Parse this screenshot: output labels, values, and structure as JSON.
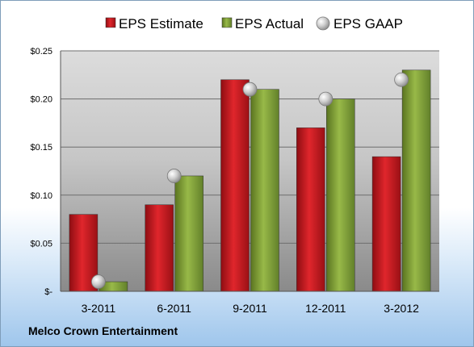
{
  "chart_data": {
    "type": "bar",
    "title": "",
    "xlabel": "",
    "ylabel": "",
    "categories": [
      "3-2011",
      "6-2011",
      "9-2011",
      "12-2011",
      "3-2012"
    ],
    "ylim": [
      0,
      0.25
    ],
    "yticks": [
      0,
      0.05,
      0.1,
      0.15,
      0.2,
      0.25
    ],
    "ytick_labels": [
      "$-",
      "$0.05",
      "$0.10",
      "$0.15",
      "$0.20",
      "$0.25"
    ],
    "grid": true,
    "legend_position": "top",
    "series": [
      {
        "name": "EPS Estimate",
        "kind": "bar",
        "color": "#c0151b",
        "values": [
          0.08,
          0.09,
          0.22,
          0.17,
          0.14
        ]
      },
      {
        "name": "EPS Actual",
        "kind": "bar",
        "color": "#7a9a2e",
        "values": [
          0.01,
          0.12,
          0.21,
          0.2,
          0.23
        ]
      },
      {
        "name": "EPS GAAP",
        "kind": "marker",
        "color": "#a8a8a8",
        "values": [
          0.01,
          0.12,
          0.21,
          0.2,
          0.22
        ]
      }
    ]
  },
  "footer": {
    "company": "Melco Crown Entertainment"
  }
}
